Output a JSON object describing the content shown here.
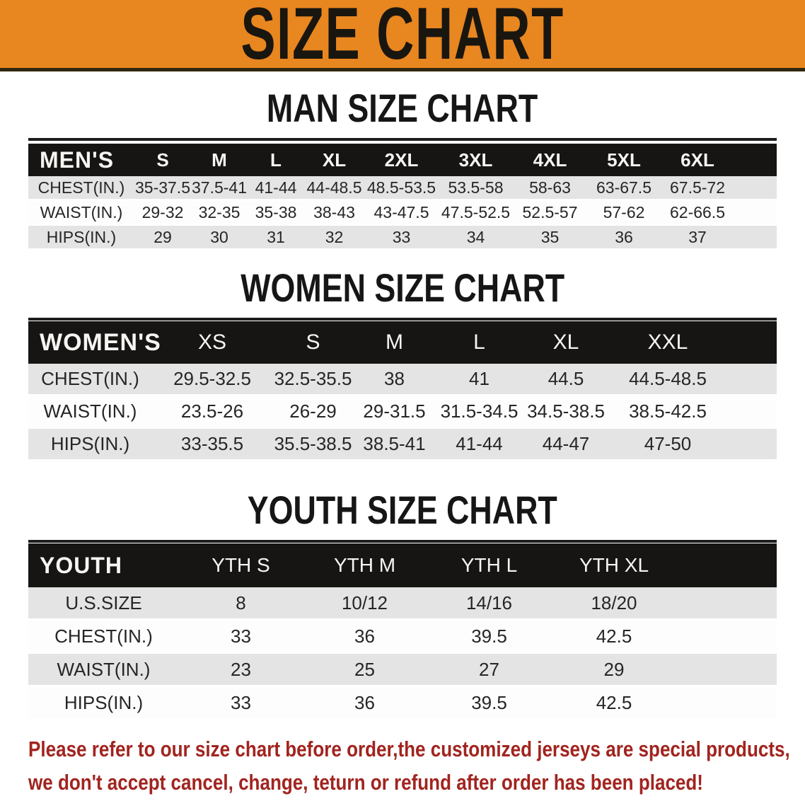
{
  "banner": {
    "title": "SIZE CHART",
    "bg": "#E88620"
  },
  "charts": [
    {
      "id": "men",
      "heading": "MAN SIZE CHART",
      "header_label": "MEN'S",
      "columns": [
        "S",
        "M",
        "L",
        "XL",
        "2XL",
        "3XL",
        "4XL",
        "5XL",
        "6XL"
      ],
      "rows": [
        {
          "label": "CHEST(IN.)",
          "values": [
            "35-37.5",
            "37.5-41",
            "41-44",
            "44-48.5",
            "48.5-53.5",
            "53.5-58",
            "58-63",
            "63-67.5",
            "67.5-72"
          ]
        },
        {
          "label": "WAIST(IN.)",
          "values": [
            "29-32",
            "32-35",
            "35-38",
            "38-43",
            "43-47.5",
            "47.5-52.5",
            "52.5-57",
            "57-62",
            "62-66.5"
          ]
        },
        {
          "label": "HIPS(IN.)",
          "values": [
            "29",
            "30",
            "31",
            "32",
            "33",
            "34",
            "35",
            "36",
            "37"
          ]
        }
      ]
    },
    {
      "id": "women",
      "heading": "WOMEN SIZE CHART",
      "header_label": "WOMEN'S",
      "columns": [
        "XS",
        "S",
        "M",
        "L",
        "XL",
        "XXL"
      ],
      "rows": [
        {
          "label": "CHEST(IN.)",
          "values": [
            "29.5-32.5",
            "32.5-35.5",
            "38",
            "41",
            "44.5",
            "44.5-48.5"
          ]
        },
        {
          "label": "WAIST(IN.)",
          "values": [
            "23.5-26",
            "26-29",
            "29-31.5",
            "31.5-34.5",
            "34.5-38.5",
            "38.5-42.5"
          ]
        },
        {
          "label": "HIPS(IN.)",
          "values": [
            "33-35.5",
            "35.5-38.5",
            "38.5-41",
            "41-44",
            "44-47",
            "47-50"
          ]
        }
      ]
    },
    {
      "id": "youth",
      "heading": "YOUTH SIZE CHART",
      "header_label": "YOUTH",
      "columns": [
        "YTH S",
        "YTH M",
        "YTH L",
        "YTH XL"
      ],
      "rows": [
        {
          "label": "U.S.SIZE",
          "values": [
            "8",
            "10/12",
            "14/16",
            "18/20"
          ]
        },
        {
          "label": "CHEST(IN.)",
          "values": [
            "33",
            "36",
            "39.5",
            "42.5"
          ]
        },
        {
          "label": "WAIST(IN.)",
          "values": [
            "23",
            "25",
            "27",
            "29"
          ]
        },
        {
          "label": "HIPS(IN.)",
          "values": [
            "33",
            "36",
            "39.5",
            "42.5"
          ]
        }
      ]
    }
  ],
  "disclaimer": {
    "line1": "Please refer to our size chart before order,the customized jerseys are special products,",
    "line2": "we don't accept cancel, change, teturn or refund after order has been placed!",
    "color": "#A1241F"
  }
}
